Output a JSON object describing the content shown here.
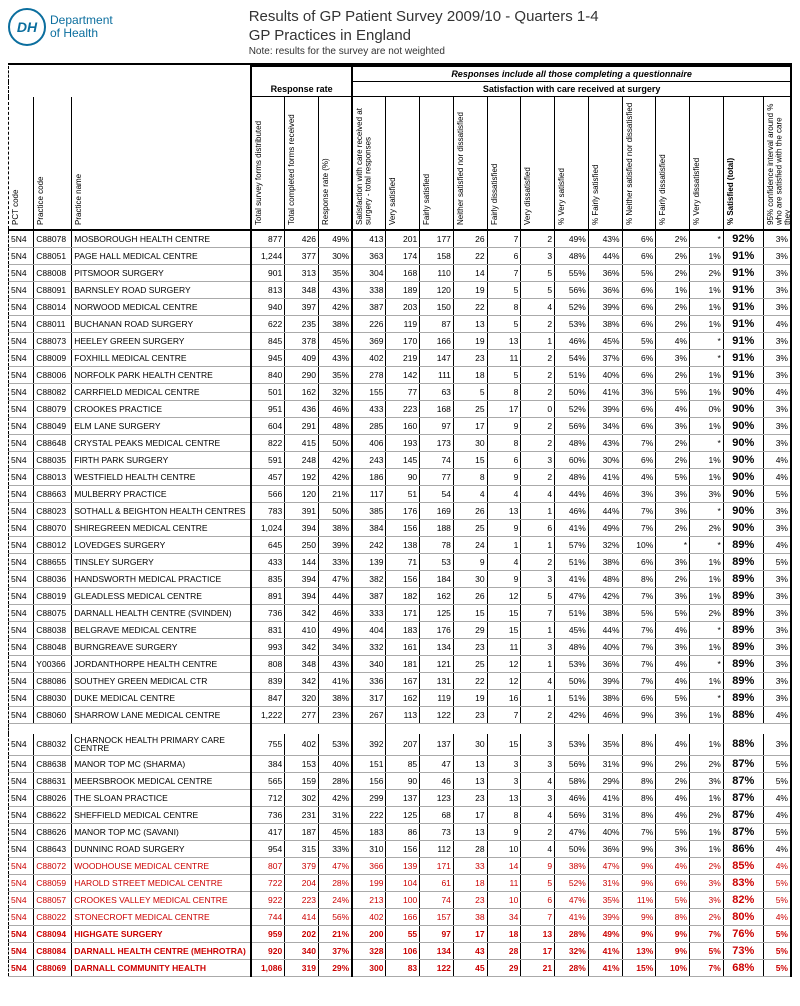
{
  "header": {
    "logo_abbrev": "DH",
    "logo_line1": "Department",
    "logo_line2": "of Health",
    "title1": "Results of GP Patient Survey 2009/10 - Quarters 1-4",
    "title2": "GP Practices in England",
    "note": "Note: results for the survey are not weighted"
  },
  "group_headers": {
    "responses_note": "Responses include all those completing a questionnaire",
    "response_rate": "Response rate",
    "satisfaction": "Satisfaction with care received at surgery"
  },
  "columns": {
    "pct": "PCT code",
    "prac": "Practice code",
    "name": "Practice name",
    "dist": "Total survey forms distributed",
    "recv": "Total completed forms received",
    "rrate": "Response rate (%)",
    "tot": "Satisfaction with care received at surgery - total responses",
    "vs": "Very satisfied",
    "fs": "Fairly satisfied",
    "ns": "Neither satisfied nor dissatisfied",
    "fd": "Fairly dissatisfied",
    "vd": "Very dissatisfied",
    "pvs": "% Very satisfied",
    "pfs": "% Fairly satisfied",
    "pns": "% Neither satisfied nor dissatisfied",
    "pfd": "% Fairly dissatisfied",
    "pvd": "% Very dissatisfied",
    "sat": "% Satisfied (total)",
    "ci": "95% confidence interval around % who are satisfied with the care they"
  },
  "rows": [
    {
      "pct": "5N4",
      "prac": "C88078",
      "name": "MOSBOROUGH HEALTH CENTRE",
      "d": "877",
      "r": "426",
      "rr": "49%",
      "t": "413",
      "vs": "201",
      "fs": "177",
      "ns": "26",
      "fd": "7",
      "vd": "2",
      "pvs": "49%",
      "pfs": "43%",
      "pns": "6%",
      "pfd": "2%",
      "pvd": "*",
      "sat": "92%",
      "ci": "3%"
    },
    {
      "pct": "5N4",
      "prac": "C88051",
      "name": "PAGE HALL MEDICAL CENTRE",
      "d": "1,244",
      "r": "377",
      "rr": "30%",
      "t": "363",
      "vs": "174",
      "fs": "158",
      "ns": "22",
      "fd": "6",
      "vd": "3",
      "pvs": "48%",
      "pfs": "44%",
      "pns": "6%",
      "pfd": "2%",
      "pvd": "1%",
      "sat": "91%",
      "ci": "3%"
    },
    {
      "pct": "5N4",
      "prac": "C88008",
      "name": "PITSMOOR SURGERY",
      "d": "901",
      "r": "313",
      "rr": "35%",
      "t": "304",
      "vs": "168",
      "fs": "110",
      "ns": "14",
      "fd": "7",
      "vd": "5",
      "pvs": "55%",
      "pfs": "36%",
      "pns": "5%",
      "pfd": "2%",
      "pvd": "2%",
      "sat": "91%",
      "ci": "3%"
    },
    {
      "pct": "5N4",
      "prac": "C88091",
      "name": "BARNSLEY ROAD SURGERY",
      "d": "813",
      "r": "348",
      "rr": "43%",
      "t": "338",
      "vs": "189",
      "fs": "120",
      "ns": "19",
      "fd": "5",
      "vd": "5",
      "pvs": "56%",
      "pfs": "36%",
      "pns": "6%",
      "pfd": "1%",
      "pvd": "1%",
      "sat": "91%",
      "ci": "3%"
    },
    {
      "pct": "5N4",
      "prac": "C88014",
      "name": "NORWOOD MEDICAL CENTRE",
      "d": "940",
      "r": "397",
      "rr": "42%",
      "t": "387",
      "vs": "203",
      "fs": "150",
      "ns": "22",
      "fd": "8",
      "vd": "4",
      "pvs": "52%",
      "pfs": "39%",
      "pns": "6%",
      "pfd": "2%",
      "pvd": "1%",
      "sat": "91%",
      "ci": "3%"
    },
    {
      "pct": "5N4",
      "prac": "C88011",
      "name": "BUCHANAN ROAD SURGERY",
      "d": "622",
      "r": "235",
      "rr": "38%",
      "t": "226",
      "vs": "119",
      "fs": "87",
      "ns": "13",
      "fd": "5",
      "vd": "2",
      "pvs": "53%",
      "pfs": "38%",
      "pns": "6%",
      "pfd": "2%",
      "pvd": "1%",
      "sat": "91%",
      "ci": "4%"
    },
    {
      "pct": "5N4",
      "prac": "C88073",
      "name": "HEELEY GREEN SURGERY",
      "d": "845",
      "r": "378",
      "rr": "45%",
      "t": "369",
      "vs": "170",
      "fs": "166",
      "ns": "19",
      "fd": "13",
      "vd": "1",
      "pvs": "46%",
      "pfs": "45%",
      "pns": "5%",
      "pfd": "4%",
      "pvd": "*",
      "sat": "91%",
      "ci": "3%"
    },
    {
      "pct": "5N4",
      "prac": "C88009",
      "name": "FOXHILL MEDICAL CENTRE",
      "d": "945",
      "r": "409",
      "rr": "43%",
      "t": "402",
      "vs": "219",
      "fs": "147",
      "ns": "23",
      "fd": "11",
      "vd": "2",
      "pvs": "54%",
      "pfs": "37%",
      "pns": "6%",
      "pfd": "3%",
      "pvd": "*",
      "sat": "91%",
      "ci": "3%"
    },
    {
      "pct": "5N4",
      "prac": "C88006",
      "name": "NORFOLK PARK HEALTH CENTRE",
      "d": "840",
      "r": "290",
      "rr": "35%",
      "t": "278",
      "vs": "142",
      "fs": "111",
      "ns": "18",
      "fd": "5",
      "vd": "2",
      "pvs": "51%",
      "pfs": "40%",
      "pns": "6%",
      "pfd": "2%",
      "pvd": "1%",
      "sat": "91%",
      "ci": "3%"
    },
    {
      "pct": "5N4",
      "prac": "C88082",
      "name": "CARRFIELD MEDICAL CENTRE",
      "d": "501",
      "r": "162",
      "rr": "32%",
      "t": "155",
      "vs": "77",
      "fs": "63",
      "ns": "5",
      "fd": "8",
      "vd": "2",
      "pvs": "50%",
      "pfs": "41%",
      "pns": "3%",
      "pfd": "5%",
      "pvd": "1%",
      "sat": "90%",
      "ci": "4%"
    },
    {
      "pct": "5N4",
      "prac": "C88079",
      "name": "CROOKES PRACTICE",
      "d": "951",
      "r": "436",
      "rr": "46%",
      "t": "433",
      "vs": "223",
      "fs": "168",
      "ns": "25",
      "fd": "17",
      "vd": "0",
      "pvs": "52%",
      "pfs": "39%",
      "pns": "6%",
      "pfd": "4%",
      "pvd": "0%",
      "sat": "90%",
      "ci": "3%"
    },
    {
      "pct": "5N4",
      "prac": "C88049",
      "name": "ELM LANE SURGERY",
      "d": "604",
      "r": "291",
      "rr": "48%",
      "t": "285",
      "vs": "160",
      "fs": "97",
      "ns": "17",
      "fd": "9",
      "vd": "2",
      "pvs": "56%",
      "pfs": "34%",
      "pns": "6%",
      "pfd": "3%",
      "pvd": "1%",
      "sat": "90%",
      "ci": "3%"
    },
    {
      "pct": "5N4",
      "prac": "C88648",
      "name": "CRYSTAL PEAKS MEDICAL CENTRE",
      "d": "822",
      "r": "415",
      "rr": "50%",
      "t": "406",
      "vs": "193",
      "fs": "173",
      "ns": "30",
      "fd": "8",
      "vd": "2",
      "pvs": "48%",
      "pfs": "43%",
      "pns": "7%",
      "pfd": "2%",
      "pvd": "*",
      "sat": "90%",
      "ci": "3%"
    },
    {
      "pct": "5N4",
      "prac": "C88035",
      "name": "FIRTH PARK SURGERY",
      "d": "591",
      "r": "248",
      "rr": "42%",
      "t": "243",
      "vs": "145",
      "fs": "74",
      "ns": "15",
      "fd": "6",
      "vd": "3",
      "pvs": "60%",
      "pfs": "30%",
      "pns": "6%",
      "pfd": "2%",
      "pvd": "1%",
      "sat": "90%",
      "ci": "4%"
    },
    {
      "pct": "5N4",
      "prac": "C88013",
      "name": "WESTFIELD HEALTH CENTRE",
      "d": "457",
      "r": "192",
      "rr": "42%",
      "t": "186",
      "vs": "90",
      "fs": "77",
      "ns": "8",
      "fd": "9",
      "vd": "2",
      "pvs": "48%",
      "pfs": "41%",
      "pns": "4%",
      "pfd": "5%",
      "pvd": "1%",
      "sat": "90%",
      "ci": "4%"
    },
    {
      "pct": "5N4",
      "prac": "C88663",
      "name": "MULBERRY PRACTICE",
      "d": "566",
      "r": "120",
      "rr": "21%",
      "t": "117",
      "vs": "51",
      "fs": "54",
      "ns": "4",
      "fd": "4",
      "vd": "4",
      "pvs": "44%",
      "pfs": "46%",
      "pns": "3%",
      "pfd": "3%",
      "pvd": "3%",
      "sat": "90%",
      "ci": "5%"
    },
    {
      "pct": "5N4",
      "prac": "C88023",
      "name": "SOTHALL & BEIGHTON HEALTH CENTRES",
      "d": "783",
      "r": "391",
      "rr": "50%",
      "t": "385",
      "vs": "176",
      "fs": "169",
      "ns": "26",
      "fd": "13",
      "vd": "1",
      "pvs": "46%",
      "pfs": "44%",
      "pns": "7%",
      "pfd": "3%",
      "pvd": "*",
      "sat": "90%",
      "ci": "3%"
    },
    {
      "pct": "5N4",
      "prac": "C88070",
      "name": "SHIREGREEN MEDICAL CENTRE",
      "d": "1,024",
      "r": "394",
      "rr": "38%",
      "t": "384",
      "vs": "156",
      "fs": "188",
      "ns": "25",
      "fd": "9",
      "vd": "6",
      "pvs": "41%",
      "pfs": "49%",
      "pns": "7%",
      "pfd": "2%",
      "pvd": "2%",
      "sat": "90%",
      "ci": "3%"
    },
    {
      "pct": "5N4",
      "prac": "C88012",
      "name": "LOVEDGES SURGERY",
      "d": "645",
      "r": "250",
      "rr": "39%",
      "t": "242",
      "vs": "138",
      "fs": "78",
      "ns": "24",
      "fd": "1",
      "vd": "1",
      "pvs": "57%",
      "pfs": "32%",
      "pns": "10%",
      "pfd": "*",
      "pvd": "*",
      "sat": "89%",
      "ci": "4%"
    },
    {
      "pct": "5N4",
      "prac": "C88655",
      "name": "TINSLEY SURGERY",
      "d": "433",
      "r": "144",
      "rr": "33%",
      "t": "139",
      "vs": "71",
      "fs": "53",
      "ns": "9",
      "fd": "4",
      "vd": "2",
      "pvs": "51%",
      "pfs": "38%",
      "pns": "6%",
      "pfd": "3%",
      "pvd": "1%",
      "sat": "89%",
      "ci": "5%"
    },
    {
      "pct": "5N4",
      "prac": "C88036",
      "name": "HANDSWORTH MEDICAL PRACTICE",
      "d": "835",
      "r": "394",
      "rr": "47%",
      "t": "382",
      "vs": "156",
      "fs": "184",
      "ns": "30",
      "fd": "9",
      "vd": "3",
      "pvs": "41%",
      "pfs": "48%",
      "pns": "8%",
      "pfd": "2%",
      "pvd": "1%",
      "sat": "89%",
      "ci": "3%"
    },
    {
      "pct": "5N4",
      "prac": "C88019",
      "name": "GLEADLESS MEDICAL CENTRE",
      "d": "891",
      "r": "394",
      "rr": "44%",
      "t": "387",
      "vs": "182",
      "fs": "162",
      "ns": "26",
      "fd": "12",
      "vd": "5",
      "pvs": "47%",
      "pfs": "42%",
      "pns": "7%",
      "pfd": "3%",
      "pvd": "1%",
      "sat": "89%",
      "ci": "3%"
    },
    {
      "pct": "5N4",
      "prac": "C88075",
      "name": "DARNALL HEALTH CENTRE (SVINDEN)",
      "d": "736",
      "r": "342",
      "rr": "46%",
      "t": "333",
      "vs": "171",
      "fs": "125",
      "ns": "15",
      "fd": "15",
      "vd": "7",
      "pvs": "51%",
      "pfs": "38%",
      "pns": "5%",
      "pfd": "5%",
      "pvd": "2%",
      "sat": "89%",
      "ci": "3%"
    },
    {
      "pct": "5N4",
      "prac": "C88038",
      "name": "BELGRAVE MEDICAL CENTRE",
      "d": "831",
      "r": "410",
      "rr": "49%",
      "t": "404",
      "vs": "183",
      "fs": "176",
      "ns": "29",
      "fd": "15",
      "vd": "1",
      "pvs": "45%",
      "pfs": "44%",
      "pns": "7%",
      "pfd": "4%",
      "pvd": "*",
      "sat": "89%",
      "ci": "3%"
    },
    {
      "pct": "5N4",
      "prac": "C88048",
      "name": "BURNGREAVE SURGERY",
      "d": "993",
      "r": "342",
      "rr": "34%",
      "t": "332",
      "vs": "161",
      "fs": "134",
      "ns": "23",
      "fd": "11",
      "vd": "3",
      "pvs": "48%",
      "pfs": "40%",
      "pns": "7%",
      "pfd": "3%",
      "pvd": "1%",
      "sat": "89%",
      "ci": "3%"
    },
    {
      "pct": "5N4",
      "prac": "Y00366",
      "name": "JORDANTHORPE HEALTH CENTRE",
      "d": "808",
      "r": "348",
      "rr": "43%",
      "t": "340",
      "vs": "181",
      "fs": "121",
      "ns": "25",
      "fd": "12",
      "vd": "1",
      "pvs": "53%",
      "pfs": "36%",
      "pns": "7%",
      "pfd": "4%",
      "pvd": "*",
      "sat": "89%",
      "ci": "3%"
    },
    {
      "pct": "5N4",
      "prac": "C88086",
      "name": "SOUTHEY GREEN MEDICAL CTR",
      "d": "839",
      "r": "342",
      "rr": "41%",
      "t": "336",
      "vs": "167",
      "fs": "131",
      "ns": "22",
      "fd": "12",
      "vd": "4",
      "pvs": "50%",
      "pfs": "39%",
      "pns": "7%",
      "pfd": "4%",
      "pvd": "1%",
      "sat": "89%",
      "ci": "3%"
    },
    {
      "pct": "5N4",
      "prac": "C88030",
      "name": "DUKE MEDICAL CENTRE",
      "d": "847",
      "r": "320",
      "rr": "38%",
      "t": "317",
      "vs": "162",
      "fs": "119",
      "ns": "19",
      "fd": "16",
      "vd": "1",
      "pvs": "51%",
      "pfs": "38%",
      "pns": "6%",
      "pfd": "5%",
      "pvd": "*",
      "sat": "89%",
      "ci": "3%"
    },
    {
      "pct": "5N4",
      "prac": "C88060",
      "name": "SHARROW LANE MEDICAL CENTRE",
      "d": "1,222",
      "r": "277",
      "rr": "23%",
      "t": "267",
      "vs": "113",
      "fs": "122",
      "ns": "23",
      "fd": "7",
      "vd": "2",
      "pvs": "42%",
      "pfs": "46%",
      "pns": "9%",
      "pfd": "3%",
      "pvd": "1%",
      "sat": "88%",
      "ci": "4%"
    },
    {
      "gap": true
    },
    {
      "pct": "5N4",
      "prac": "C88032",
      "name": "CHARNOCK HEALTH PRIMARY CARE CENTRE",
      "d": "755",
      "r": "402",
      "rr": "53%",
      "t": "392",
      "vs": "207",
      "fs": "137",
      "ns": "30",
      "fd": "15",
      "vd": "3",
      "pvs": "53%",
      "pfs": "35%",
      "pns": "8%",
      "pfd": "4%",
      "pvd": "1%",
      "sat": "88%",
      "ci": "3%"
    },
    {
      "pct": "5N4",
      "prac": "C88638",
      "name": "MANOR TOP MC (SHARMA)",
      "d": "384",
      "r": "153",
      "rr": "40%",
      "t": "151",
      "vs": "85",
      "fs": "47",
      "ns": "13",
      "fd": "3",
      "vd": "3",
      "pvs": "56%",
      "pfs": "31%",
      "pns": "9%",
      "pfd": "2%",
      "pvd": "2%",
      "sat": "87%",
      "ci": "5%"
    },
    {
      "pct": "5N4",
      "prac": "C88631",
      "name": "MEERSBROOK MEDICAL CENTRE",
      "d": "565",
      "r": "159",
      "rr": "28%",
      "t": "156",
      "vs": "90",
      "fs": "46",
      "ns": "13",
      "fd": "3",
      "vd": "4",
      "pvs": "58%",
      "pfs": "29%",
      "pns": "8%",
      "pfd": "2%",
      "pvd": "3%",
      "sat": "87%",
      "ci": "5%"
    },
    {
      "pct": "5N4",
      "prac": "C88026",
      "name": "THE SLOAN PRACTICE",
      "d": "712",
      "r": "302",
      "rr": "42%",
      "t": "299",
      "vs": "137",
      "fs": "123",
      "ns": "23",
      "fd": "13",
      "vd": "3",
      "pvs": "46%",
      "pfs": "41%",
      "pns": "8%",
      "pfd": "4%",
      "pvd": "1%",
      "sat": "87%",
      "ci": "4%"
    },
    {
      "pct": "5N4",
      "prac": "C88622",
      "name": "SHEFFIELD MEDICAL CENTRE",
      "d": "736",
      "r": "231",
      "rr": "31%",
      "t": "222",
      "vs": "125",
      "fs": "68",
      "ns": "17",
      "fd": "8",
      "vd": "4",
      "pvs": "56%",
      "pfs": "31%",
      "pns": "8%",
      "pfd": "4%",
      "pvd": "2%",
      "sat": "87%",
      "ci": "4%"
    },
    {
      "pct": "5N4",
      "prac": "C88626",
      "name": "MANOR TOP MC (SAVANI)",
      "d": "417",
      "r": "187",
      "rr": "45%",
      "t": "183",
      "vs": "86",
      "fs": "73",
      "ns": "13",
      "fd": "9",
      "vd": "2",
      "pvs": "47%",
      "pfs": "40%",
      "pns": "7%",
      "pfd": "5%",
      "pvd": "1%",
      "sat": "87%",
      "ci": "5%"
    },
    {
      "pct": "5N4",
      "prac": "C88643",
      "name": "DUNNINC ROAD SURGERY",
      "d": "954",
      "r": "315",
      "rr": "33%",
      "t": "310",
      "vs": "156",
      "fs": "112",
      "ns": "28",
      "fd": "10",
      "vd": "4",
      "pvs": "50%",
      "pfs": "36%",
      "pns": "9%",
      "pfd": "3%",
      "pvd": "1%",
      "sat": "86%",
      "ci": "4%"
    },
    {
      "pct": "5N4",
      "prac": "C88072",
      "name": "WOODHOUSE MEDICAL CENTRE",
      "d": "807",
      "r": "379",
      "rr": "47%",
      "t": "366",
      "vs": "139",
      "fs": "171",
      "ns": "33",
      "fd": "14",
      "vd": "9",
      "pvs": "38%",
      "pfs": "47%",
      "pns": "9%",
      "pfd": "4%",
      "pvd": "2%",
      "sat": "85%",
      "ci": "4%",
      "red": true
    },
    {
      "pct": "5N4",
      "prac": "C88059",
      "name": "HAROLD STREET MEDICAL CENTRE",
      "d": "722",
      "r": "204",
      "rr": "28%",
      "t": "199",
      "vs": "104",
      "fs": "61",
      "ns": "18",
      "fd": "11",
      "vd": "5",
      "pvs": "52%",
      "pfs": "31%",
      "pns": "9%",
      "pfd": "6%",
      "pvd": "3%",
      "sat": "83%",
      "ci": "5%",
      "red": true
    },
    {
      "pct": "5N4",
      "prac": "C88057",
      "name": "CROOKES VALLEY MEDICAL CENTRE",
      "d": "922",
      "r": "223",
      "rr": "24%",
      "t": "213",
      "vs": "100",
      "fs": "74",
      "ns": "23",
      "fd": "10",
      "vd": "6",
      "pvs": "47%",
      "pfs": "35%",
      "pns": "11%",
      "pfd": "5%",
      "pvd": "3%",
      "sat": "82%",
      "ci": "5%",
      "red": true
    },
    {
      "pct": "5N4",
      "prac": "C88022",
      "name": "STONECROFT MEDICAL CENTRE",
      "d": "744",
      "r": "414",
      "rr": "56%",
      "t": "402",
      "vs": "166",
      "fs": "157",
      "ns": "38",
      "fd": "34",
      "vd": "7",
      "pvs": "41%",
      "pfs": "39%",
      "pns": "9%",
      "pfd": "8%",
      "pvd": "2%",
      "sat": "80%",
      "ci": "4%",
      "red": true
    },
    {
      "pct": "5N4",
      "prac": "C88094",
      "name": "HIGHGATE SURGERY",
      "d": "959",
      "r": "202",
      "rr": "21%",
      "t": "200",
      "vs": "55",
      "fs": "97",
      "ns": "17",
      "fd": "18",
      "vd": "13",
      "pvs": "28%",
      "pfs": "49%",
      "pns": "9%",
      "pfd": "9%",
      "pvd": "7%",
      "sat": "76%",
      "ci": "5%",
      "red": true,
      "bold": true
    },
    {
      "pct": "5N4",
      "prac": "C88084",
      "name": "DARNALL HEALTH CENTRE (MEHROTRA)",
      "d": "920",
      "r": "340",
      "rr": "37%",
      "t": "328",
      "vs": "106",
      "fs": "134",
      "ns": "43",
      "fd": "28",
      "vd": "17",
      "pvs": "32%",
      "pfs": "41%",
      "pns": "13%",
      "pfd": "9%",
      "pvd": "5%",
      "sat": "73%",
      "ci": "5%",
      "red": true,
      "bold": true
    },
    {
      "pct": "5N4",
      "prac": "C88069",
      "name": "DARNALL COMMUNITY HEALTH",
      "d": "1,086",
      "r": "319",
      "rr": "29%",
      "t": "300",
      "vs": "83",
      "fs": "122",
      "ns": "45",
      "fd": "29",
      "vd": "21",
      "pvs": "28%",
      "pfs": "41%",
      "pns": "15%",
      "pfd": "10%",
      "pvd": "7%",
      "sat": "68%",
      "ci": "5%",
      "red": true,
      "bold": true
    }
  ]
}
